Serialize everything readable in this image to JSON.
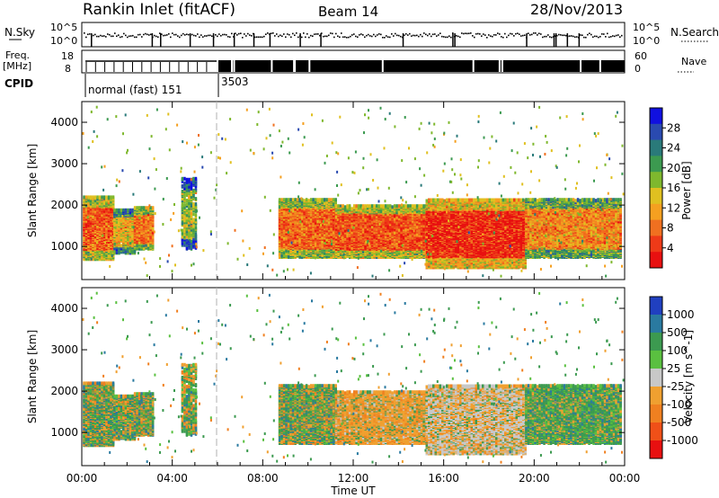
{
  "header": {
    "title": "Rankin Inlet (fitACF)",
    "beam": "Beam 14",
    "date": "28/Nov/2013"
  },
  "status": {
    "nsky_label": "N.Sky",
    "nsearch_label": "N.Search",
    "freq_label_top": "Freq.",
    "freq_label_unit": "[MHz]",
    "nave_label": "Nave",
    "cpid_label": "CPID",
    "noise_left_ticks": [
      "10^5",
      "10^0"
    ],
    "noise_right_ticks": [
      "10^5",
      "10^0"
    ],
    "freq_ticks": [
      "18",
      "8"
    ],
    "nave_ticks": [
      "60",
      "0"
    ],
    "cpid_segments": [
      {
        "label": "normal (fast) 151",
        "start_hour": 0.0
      },
      {
        "label": "3503",
        "start_hour": 6.0
      }
    ]
  },
  "chart_data": [
    {
      "type": "heatmap",
      "name": "power",
      "ylabel": "Slant Range [km]",
      "ylim": [
        200,
        4500
      ],
      "yticks": [
        "1000",
        "2000",
        "3000",
        "4000"
      ],
      "xlim_hours": [
        0,
        24
      ],
      "colorbar": {
        "label": "Power [dB]",
        "ticks": [
          "4",
          "8",
          "12",
          "16",
          "20",
          "24",
          "28"
        ],
        "colors": [
          "#1010e0",
          "#2a4ab0",
          "#2a7a7a",
          "#3c9a50",
          "#7fb82e",
          "#e0c020",
          "#f5a020",
          "#f07020",
          "#ee3a18",
          "#e81010"
        ]
      }
    },
    {
      "type": "heatmap",
      "name": "velocity",
      "ylabel": "Slant Range [km]",
      "ylim": [
        200,
        4500
      ],
      "yticks": [
        "1000",
        "2000",
        "3000",
        "4000"
      ],
      "xlim_hours": [
        0,
        24
      ],
      "colorbar": {
        "label": "Velocity [m s^-1]",
        "ticks": [
          "1000",
          "500",
          "100",
          "25",
          "-25",
          "-100",
          "-500",
          "-1000"
        ],
        "colors": [
          "#2040c0",
          "#2a7aa0",
          "#3c9a50",
          "#5ac040",
          "#c8c8c8",
          "#f0a030",
          "#f08020",
          "#f05018",
          "#e81010"
        ]
      }
    }
  ],
  "xaxis": {
    "label": "Time UT",
    "ticks": [
      "00:00",
      "04:00",
      "08:00",
      "12:00",
      "16:00",
      "20:00",
      "00:00"
    ]
  },
  "colors": {
    "gap_marker": "#b0b0b0"
  }
}
